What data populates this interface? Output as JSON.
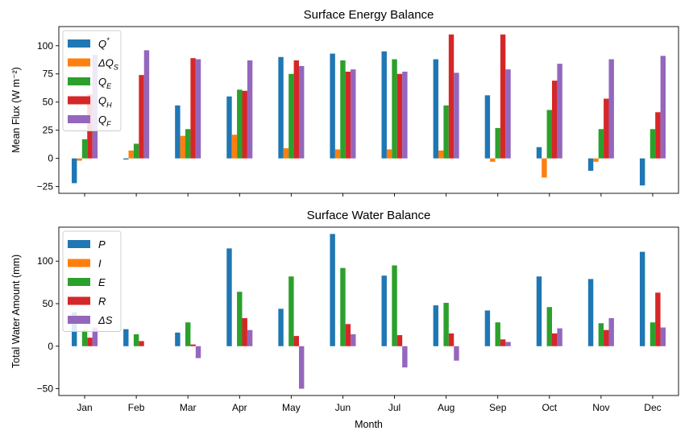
{
  "chart_data": [
    {
      "type": "bar",
      "title": "Surface Energy Balance",
      "xlabel": "",
      "ylabel": "Mean Flux (W m⁻²)",
      "ylim": [
        -31,
        117
      ],
      "yticks": [
        -25,
        0,
        25,
        50,
        75,
        100
      ],
      "categories": [
        "Jan",
        "Feb",
        "Mar",
        "Apr",
        "May",
        "Jun",
        "Jul",
        "Aug",
        "Sep",
        "Oct",
        "Nov",
        "Dec"
      ],
      "show_tick_labels": false,
      "legend": "top-left",
      "grid": false,
      "series": [
        {
          "name": "Q",
          "sup": "*",
          "sub": "",
          "color": "#1f77b4",
          "values": [
            -22,
            -1,
            47,
            55,
            90,
            93,
            95,
            88,
            56,
            10,
            -11,
            -24
          ]
        },
        {
          "name": "ΔQ",
          "sup": "",
          "sub": "S",
          "color": "#ff7f0e",
          "values": [
            -2,
            7,
            20,
            21,
            9,
            8,
            8,
            7,
            -3,
            -17,
            -3,
            0
          ]
        },
        {
          "name": "Q",
          "sup": "",
          "sub": "E",
          "color": "#2ca02c",
          "values": [
            17,
            13,
            26,
            61,
            75,
            87,
            88,
            47,
            27,
            43,
            26,
            26
          ]
        },
        {
          "name": "Q",
          "sup": "",
          "sub": "H",
          "color": "#d62728",
          "values": [
            57,
            74,
            89,
            60,
            87,
            77,
            75,
            110,
            110,
            69,
            53,
            41
          ]
        },
        {
          "name": "Q",
          "sup": "",
          "sub": "F",
          "color": "#9467bd",
          "values": [
            92,
            96,
            88,
            87,
            82,
            79,
            77,
            76,
            79,
            84,
            88,
            91
          ]
        }
      ]
    },
    {
      "type": "bar",
      "title": "Surface Water Balance",
      "xlabel": "Month",
      "ylabel": "Total Water Amount (mm)",
      "ylim": [
        -58,
        140
      ],
      "yticks": [
        -50,
        0,
        50,
        100
      ],
      "categories": [
        "Jan",
        "Feb",
        "Mar",
        "Apr",
        "May",
        "Jun",
        "Jul",
        "Aug",
        "Sep",
        "Oct",
        "Nov",
        "Dec"
      ],
      "show_tick_labels": true,
      "legend": "top-left",
      "grid": false,
      "series": [
        {
          "name": "P",
          "sup": "",
          "sub": "",
          "color": "#1f77b4",
          "values": [
            40,
            20,
            16,
            115,
            44,
            132,
            83,
            48,
            42,
            82,
            79,
            111
          ]
        },
        {
          "name": "I",
          "sup": "",
          "sub": "",
          "color": "#ff7f0e",
          "values": [
            0,
            0,
            0,
            0,
            0,
            0,
            0,
            0,
            0,
            0,
            0,
            0
          ]
        },
        {
          "name": "E",
          "sup": "",
          "sub": "",
          "color": "#2ca02c",
          "values": [
            19,
            14,
            28,
            64,
            82,
            92,
            95,
            51,
            28,
            46,
            27,
            28
          ]
        },
        {
          "name": "R",
          "sup": "",
          "sub": "",
          "color": "#d62728",
          "values": [
            10,
            6,
            2,
            33,
            12,
            26,
            13,
            15,
            8,
            15,
            19,
            63
          ]
        },
        {
          "name": "ΔS",
          "sup": "",
          "sub": "",
          "color": "#9467bd",
          "values": [
            22,
            0,
            -14,
            19,
            -50,
            14,
            -25,
            -17,
            5,
            21,
            33,
            22
          ]
        }
      ]
    }
  ]
}
